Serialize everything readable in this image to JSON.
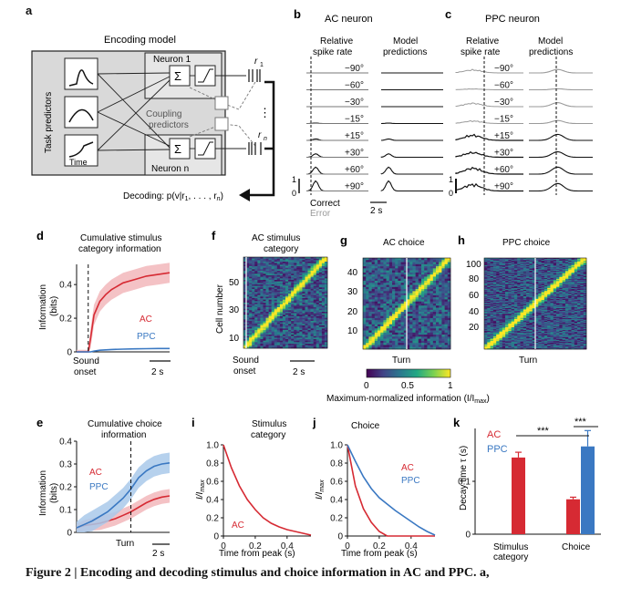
{
  "panels": {
    "a": {
      "letter": "a",
      "title": "Encoding model",
      "task_predictors": "Task predictors",
      "time_label": "Time",
      "neuron_1": "Neuron 1",
      "neuron_n": "Neuron n",
      "coupling_1": "Coupling",
      "coupling_2": "predictors",
      "r1": "r",
      "r1_sub": "1",
      "rn": "r",
      "rn_sub": "n",
      "sum": "Σ",
      "dots": "⋮",
      "decoding": "Decoding: p(v|r",
      "decoding_tail": ", . . . , r",
      "decoding_end": ")"
    },
    "b": {
      "letter": "b",
      "title": "AC neuron",
      "col1_1": "Relative",
      "col1_2": "spike rate",
      "col2_1": "Model",
      "col2_2": "predictions",
      "rows": [
        "−90°",
        "−60°",
        "−30°",
        "−15°",
        "+15°",
        "+30°",
        "+60°",
        "+90°"
      ],
      "scale_1": "1",
      "scale_0": "0",
      "correct": "Correct",
      "error": "Error",
      "time_bar": "2 s"
    },
    "c": {
      "letter": "c",
      "title": "PPC neuron",
      "col1_1": "Relative",
      "col1_2": "spike rate",
      "col2_1": "Model",
      "col2_2": "predictions",
      "rows": [
        "−90°",
        "−60°",
        "−30°",
        "−15°",
        "+15°",
        "+30°",
        "+60°",
        "+90°"
      ],
      "scale_1": "1",
      "scale_0": "0"
    },
    "d": {
      "letter": "d",
      "title_1": "Cumulative stimulus",
      "title_2": "category information",
      "ylabel_1": "Information",
      "ylabel_2": "(bits)",
      "yticks": [
        "0.4",
        "0.2",
        "0"
      ],
      "legend_ac": "AC",
      "legend_ppc": "PPC",
      "xlabel_1": "Sound",
      "xlabel_2": "onset",
      "time_bar": "2 s"
    },
    "f": {
      "letter": "f",
      "title_1": "AC stimulus",
      "title_2": "category",
      "ylabel": "Cell number",
      "yticks": [
        "50",
        "30",
        "10"
      ],
      "xlabel_1": "Sound",
      "xlabel_2": "onset",
      "time_bar": "2 s"
    },
    "g": {
      "letter": "g",
      "title": "AC choice",
      "yticks": [
        "40",
        "30",
        "20",
        "10"
      ],
      "xlabel": "Turn"
    },
    "h": {
      "letter": "h",
      "title": "PPC choice",
      "yticks": [
        "100",
        "80",
        "60",
        "40",
        "20"
      ],
      "xlabel": "Turn"
    },
    "colorbar": {
      "ticks": [
        "0",
        "0.5",
        "1"
      ],
      "label": "Maximum-normalized information (I/I",
      "label_sub": "max",
      "label_end": ")"
    },
    "e": {
      "letter": "e",
      "title_1": "Cumulative choice",
      "title_2": "information",
      "ylabel_1": "Information",
      "ylabel_2": "(bits)",
      "yticks": [
        "0.4",
        "0.3",
        "0.2",
        "0.1",
        "0"
      ],
      "legend_ac": "AC",
      "legend_ppc": "PPC",
      "xlabel": "Turn",
      "time_bar": "2 s"
    },
    "i": {
      "letter": "i",
      "title_1": "Stimulus",
      "title_2": "category",
      "ylabel": "I/I",
      "ylabel_sub": "max",
      "yticks": [
        "1.0",
        "0.8",
        "0.6",
        "0.4",
        "0.2",
        "0"
      ],
      "xticks": [
        "0",
        "0.2",
        "0.4"
      ],
      "xlabel": "Time from peak (s)",
      "legend_ac": "AC"
    },
    "j": {
      "letter": "j",
      "title": "Choice",
      "ylabel": "I/I",
      "ylabel_sub": "max",
      "yticks": [
        "1.0",
        "0.8",
        "0.6",
        "0.4",
        "0.2",
        "0"
      ],
      "xticks": [
        "0",
        "0.2",
        "0.4"
      ],
      "xlabel": "Time from peak (s)",
      "legend_ac": "AC",
      "legend_ppc": "PPC"
    },
    "k": {
      "letter": "k",
      "ylabel": "Decay time τ (s)",
      "yticks": [
        "0.1",
        "0"
      ],
      "legend_ac": "AC",
      "legend_ppc": "PPC",
      "sig_1": "***",
      "sig_2": "***",
      "xcat_1a": "Stimulus",
      "xcat_1b": "category",
      "xcat_2": "Choice"
    }
  },
  "caption": "Figure 2 | Encoding and decoding stimulus and choice information in AC and PPC. a,",
  "colors": {
    "ac": "#d62a33",
    "ppc": "#3a78c2",
    "ac_band": "#f2b7bb",
    "ppc_band": "#a9c9ea",
    "error_gray": "#9a9a9a",
    "box_fill": "#d9d9d9"
  },
  "chart_data": [
    {
      "panel": "d",
      "type": "line",
      "title": "Cumulative stimulus category information",
      "ylabel": "Information (bits)",
      "ylim": [
        0,
        0.52
      ],
      "x": [
        -1,
        -0.6,
        -0.2,
        0,
        0.2,
        0.5,
        1,
        1.5,
        2,
        3,
        4,
        5,
        6,
        7
      ],
      "series": [
        {
          "name": "AC",
          "values": [
            0.0,
            0.0,
            0.0,
            0.0,
            0.08,
            0.22,
            0.3,
            0.34,
            0.37,
            0.41,
            0.43,
            0.45,
            0.46,
            0.47
          ]
        },
        {
          "name": "PPC",
          "values": [
            0.0,
            0.0,
            0.0,
            0.0,
            0.0,
            0.005,
            0.01,
            0.012,
            0.014,
            0.016,
            0.018,
            0.019,
            0.02,
            0.02
          ]
        }
      ]
    },
    {
      "panel": "e",
      "type": "line",
      "title": "Cumulative choice information",
      "ylabel": "Information (bits)",
      "ylim": [
        0,
        0.4
      ],
      "x": [
        -3.5,
        -3,
        -2.5,
        -2,
        -1.5,
        -1,
        -0.5,
        0,
        0.5,
        1,
        1.5,
        2,
        2.5
      ],
      "series": [
        {
          "name": "AC",
          "values": [
            0.02,
            0.03,
            0.035,
            0.04,
            0.05,
            0.06,
            0.075,
            0.09,
            0.11,
            0.13,
            0.145,
            0.155,
            0.16
          ]
        },
        {
          "name": "PPC",
          "values": [
            0.02,
            0.035,
            0.05,
            0.07,
            0.09,
            0.12,
            0.15,
            0.19,
            0.24,
            0.27,
            0.29,
            0.3,
            0.305
          ]
        }
      ]
    },
    {
      "panel": "i",
      "type": "line",
      "title": "Stimulus category",
      "xlabel": "Time from peak (s)",
      "ylabel": "I/Imax",
      "ylim": [
        0,
        1
      ],
      "x": [
        0,
        0.05,
        0.1,
        0.15,
        0.2,
        0.25,
        0.3,
        0.35,
        0.4,
        0.45,
        0.5,
        0.55
      ],
      "series": [
        {
          "name": "AC",
          "values": [
            1.0,
            0.75,
            0.55,
            0.4,
            0.29,
            0.2,
            0.14,
            0.1,
            0.07,
            0.05,
            0.03,
            0.01
          ]
        }
      ]
    },
    {
      "panel": "j",
      "type": "line",
      "title": "Choice",
      "xlabel": "Time from peak (s)",
      "ylabel": "I/Imax",
      "ylim": [
        0,
        1
      ],
      "x": [
        0,
        0.05,
        0.1,
        0.15,
        0.2,
        0.25,
        0.3,
        0.35,
        0.4,
        0.45,
        0.5,
        0.55
      ],
      "series": [
        {
          "name": "AC",
          "values": [
            1.0,
            0.55,
            0.3,
            0.15,
            0.05,
            0.0,
            0.0,
            0.0,
            0.0,
            0.0,
            0.0,
            0.0
          ]
        },
        {
          "name": "PPC",
          "values": [
            1.0,
            0.82,
            0.65,
            0.52,
            0.42,
            0.35,
            0.28,
            0.22,
            0.16,
            0.1,
            0.05,
            0.01
          ]
        }
      ]
    },
    {
      "panel": "k",
      "type": "bar",
      "ylabel": "Decay time τ (s)",
      "ylim": [
        0,
        0.2
      ],
      "categories": [
        "Stimulus category",
        "Choice"
      ],
      "series": [
        {
          "name": "AC",
          "values": [
            0.145,
            0.066
          ],
          "errors": [
            0.01,
            0.004
          ]
        },
        {
          "name": "PPC",
          "values": [
            null,
            0.166
          ],
          "errors": [
            null,
            0.03
          ]
        }
      ]
    },
    {
      "panel": "colorbar",
      "type": "heatmap",
      "title": "Maximum-normalized information (I/Imax)",
      "ylim": [
        0,
        1
      ],
      "values": [
        0,
        0.5,
        1
      ]
    }
  ]
}
